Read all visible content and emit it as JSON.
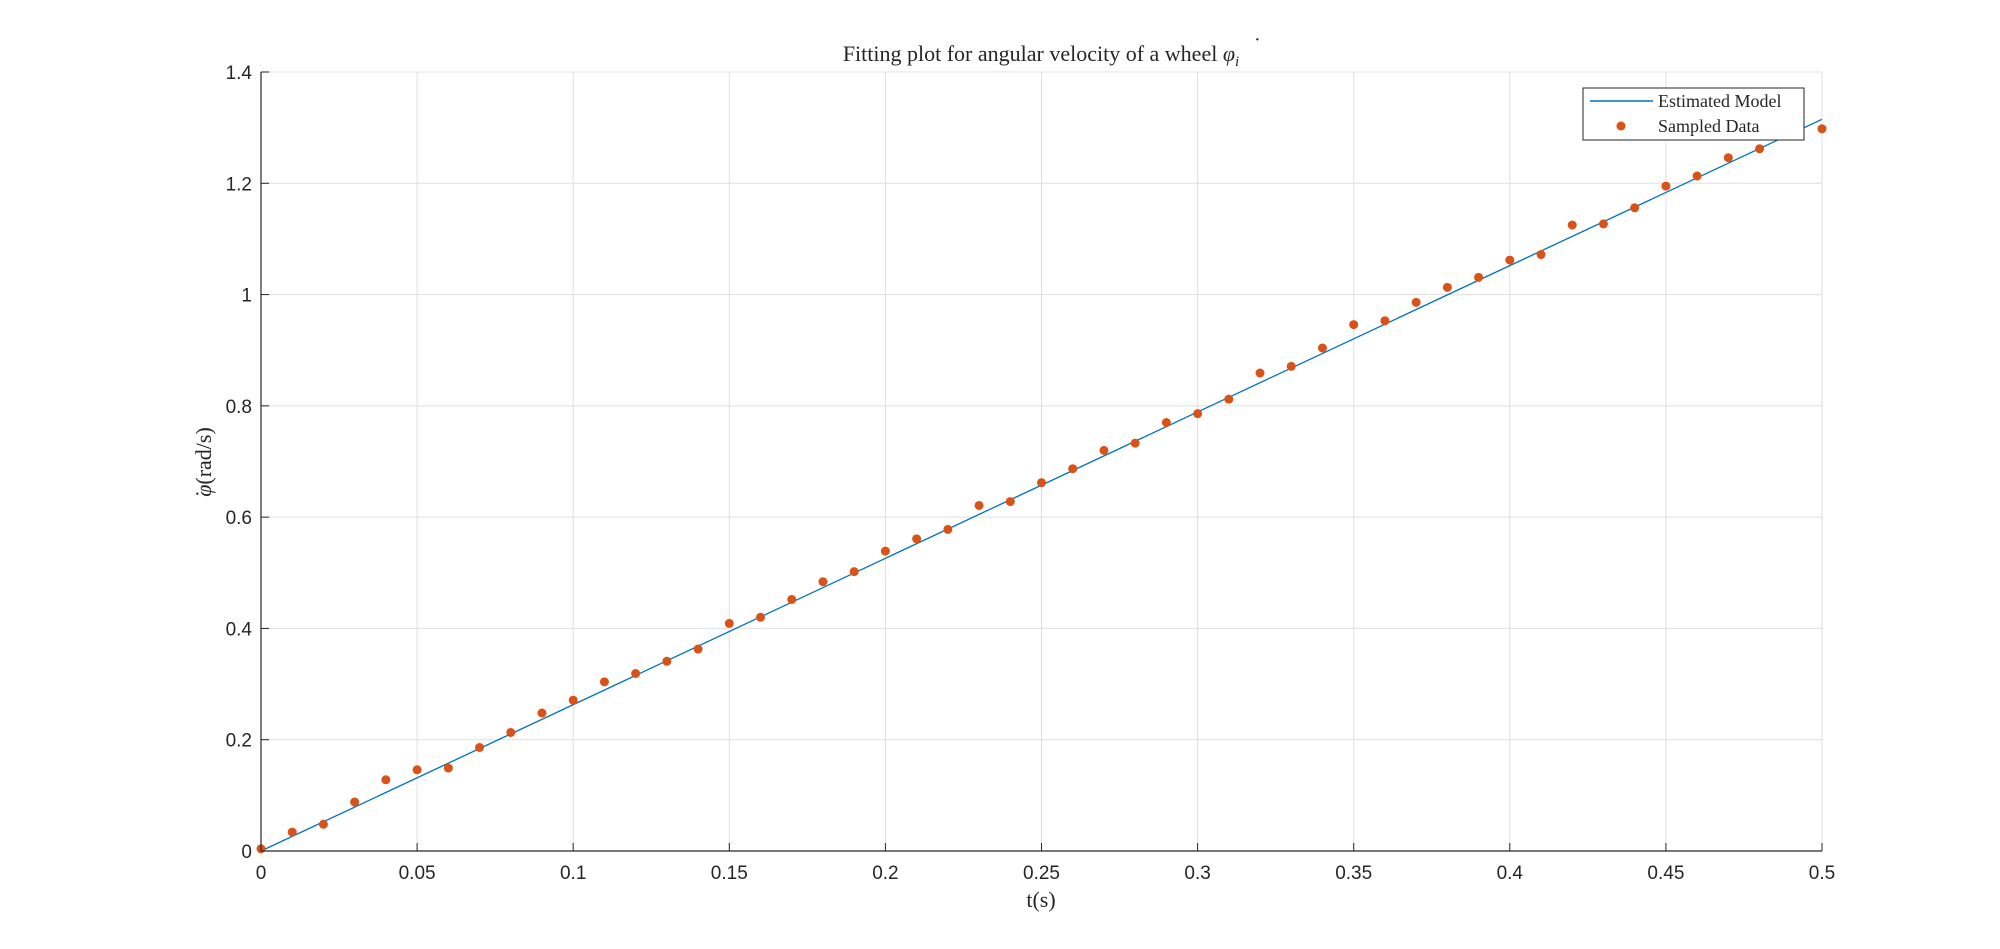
{
  "chart_data": {
    "type": "line",
    "title_text": "Fitting plot for angular velocity of a wheel ",
    "title_symbol": "φ",
    "title_subscript": "i",
    "xlabel": "t(s)",
    "ylabel_symbol": "φ",
    "ylabel_unit": "(rad/s)",
    "xlim": [
      0,
      0.5
    ],
    "ylim": [
      0,
      1.4
    ],
    "xticks": [
      0,
      0.05,
      0.1,
      0.15,
      0.2,
      0.25,
      0.3,
      0.35,
      0.4,
      0.45,
      0.5
    ],
    "xtick_labels": [
      "0",
      "0.05",
      "0.1",
      "0.15",
      "0.2",
      "0.25",
      "0.3",
      "0.35",
      "0.4",
      "0.45",
      "0.5"
    ],
    "yticks": [
      0,
      0.2,
      0.4,
      0.6,
      0.8,
      1.0,
      1.2,
      1.4
    ],
    "ytick_labels": [
      "0",
      "0.2",
      "0.4",
      "0.6",
      "0.8",
      "1",
      "1.2",
      "1.4"
    ],
    "grid": true,
    "legend_position": "top-right",
    "colors": {
      "model": "#0072BD",
      "data": "#D95319",
      "grid": "#dfdfdf",
      "axis": "#262626"
    },
    "series": [
      {
        "name": "Estimated Model",
        "kind": "line",
        "x": [
          0,
          0.5
        ],
        "y": [
          0,
          1.315
        ]
      },
      {
        "name": "Sampled Data",
        "kind": "scatter",
        "x": [
          0,
          0.01,
          0.02,
          0.03,
          0.04,
          0.05,
          0.06,
          0.07,
          0.08,
          0.09,
          0.1,
          0.11,
          0.12,
          0.13,
          0.14,
          0.15,
          0.16,
          0.17,
          0.18,
          0.19,
          0.2,
          0.21,
          0.22,
          0.23,
          0.24,
          0.25,
          0.26,
          0.27,
          0.28,
          0.29,
          0.3,
          0.31,
          0.32,
          0.33,
          0.34,
          0.35,
          0.36,
          0.37,
          0.38,
          0.39,
          0.4,
          0.41,
          0.42,
          0.43,
          0.44,
          0.45,
          0.46,
          0.47,
          0.48,
          0.5
        ],
        "y": [
          0.004,
          0.034,
          0.048,
          0.088,
          0.128,
          0.146,
          0.149,
          0.186,
          0.213,
          0.248,
          0.271,
          0.304,
          0.319,
          0.341,
          0.363,
          0.409,
          0.42,
          0.452,
          0.484,
          0.502,
          0.539,
          0.561,
          0.578,
          0.621,
          0.628,
          0.662,
          0.687,
          0.72,
          0.733,
          0.77,
          0.786,
          0.812,
          0.859,
          0.871,
          0.904,
          0.946,
          0.953,
          0.986,
          1.013,
          1.031,
          1.062,
          1.072,
          1.125,
          1.127,
          1.156,
          1.195,
          1.213,
          1.246,
          1.262,
          1.298
        ]
      }
    ]
  }
}
